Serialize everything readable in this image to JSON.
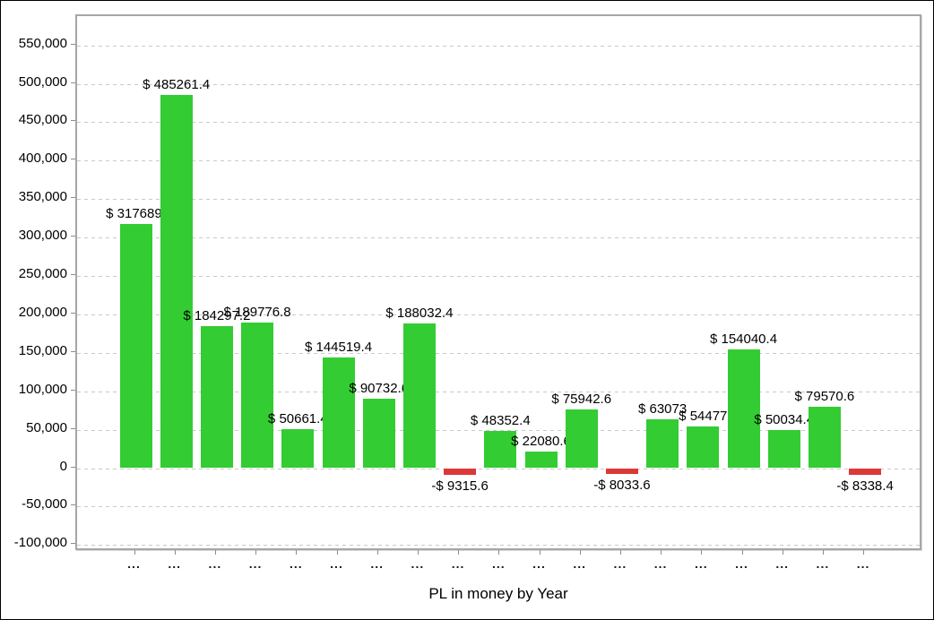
{
  "chart_data": {
    "type": "bar",
    "title": "PL in money by Year",
    "xlabel": "PL in money by Year",
    "ylabel": "",
    "legend": "none",
    "grid": "horizontal-dashed",
    "ylim": [
      -110000,
      587000
    ],
    "categories": [
      "...",
      "...",
      "...",
      "...",
      "...",
      "...",
      "...",
      "...",
      "...",
      "...",
      "...",
      "...",
      "...",
      "...",
      "...",
      "...",
      "...",
      "...",
      "..."
    ],
    "values": [
      317689.0,
      485261.4,
      184297.2,
      189776.8,
      50661.4,
      144519.4,
      90732.6,
      188032.4,
      -9315.6,
      48352.4,
      22080.6,
      75942.6,
      -8033.6,
      63073,
      54477,
      154040.4,
      50034.4,
      79570.6,
      -8338.4
    ],
    "bar_labels": [
      "$ 317689.",
      "$ 485261.4",
      "$ 184297.2",
      "$ 189776.8",
      "$ 50661.4",
      "$ 144519.4",
      "$ 90732.6",
      "$ 188032.4",
      "-$ 9315.6",
      "$ 48352.4",
      "$ 22080.6",
      "$ 75942.6",
      "-$ 8033.6",
      "$ 63073",
      "$ 54477",
      "$ 154040.4",
      "$ 50034.4",
      "$ 79570.6",
      "-$ 8338.4"
    ],
    "y_tick_labels": [
      "550,000",
      "500,000",
      "450,000",
      "400,000",
      "350,000",
      "300,000",
      "250,000",
      "200,000",
      "150,000",
      "100,000",
      "50,000",
      "0",
      "-50,000",
      "-100,000"
    ],
    "colors": {
      "positive_bar": "#33cc33",
      "negative_bar": "#dd3838",
      "gridline": "#c9c9c9",
      "axis_border": "#a6a6a6",
      "tick": "#8c8c8c",
      "text": "#000000"
    }
  }
}
